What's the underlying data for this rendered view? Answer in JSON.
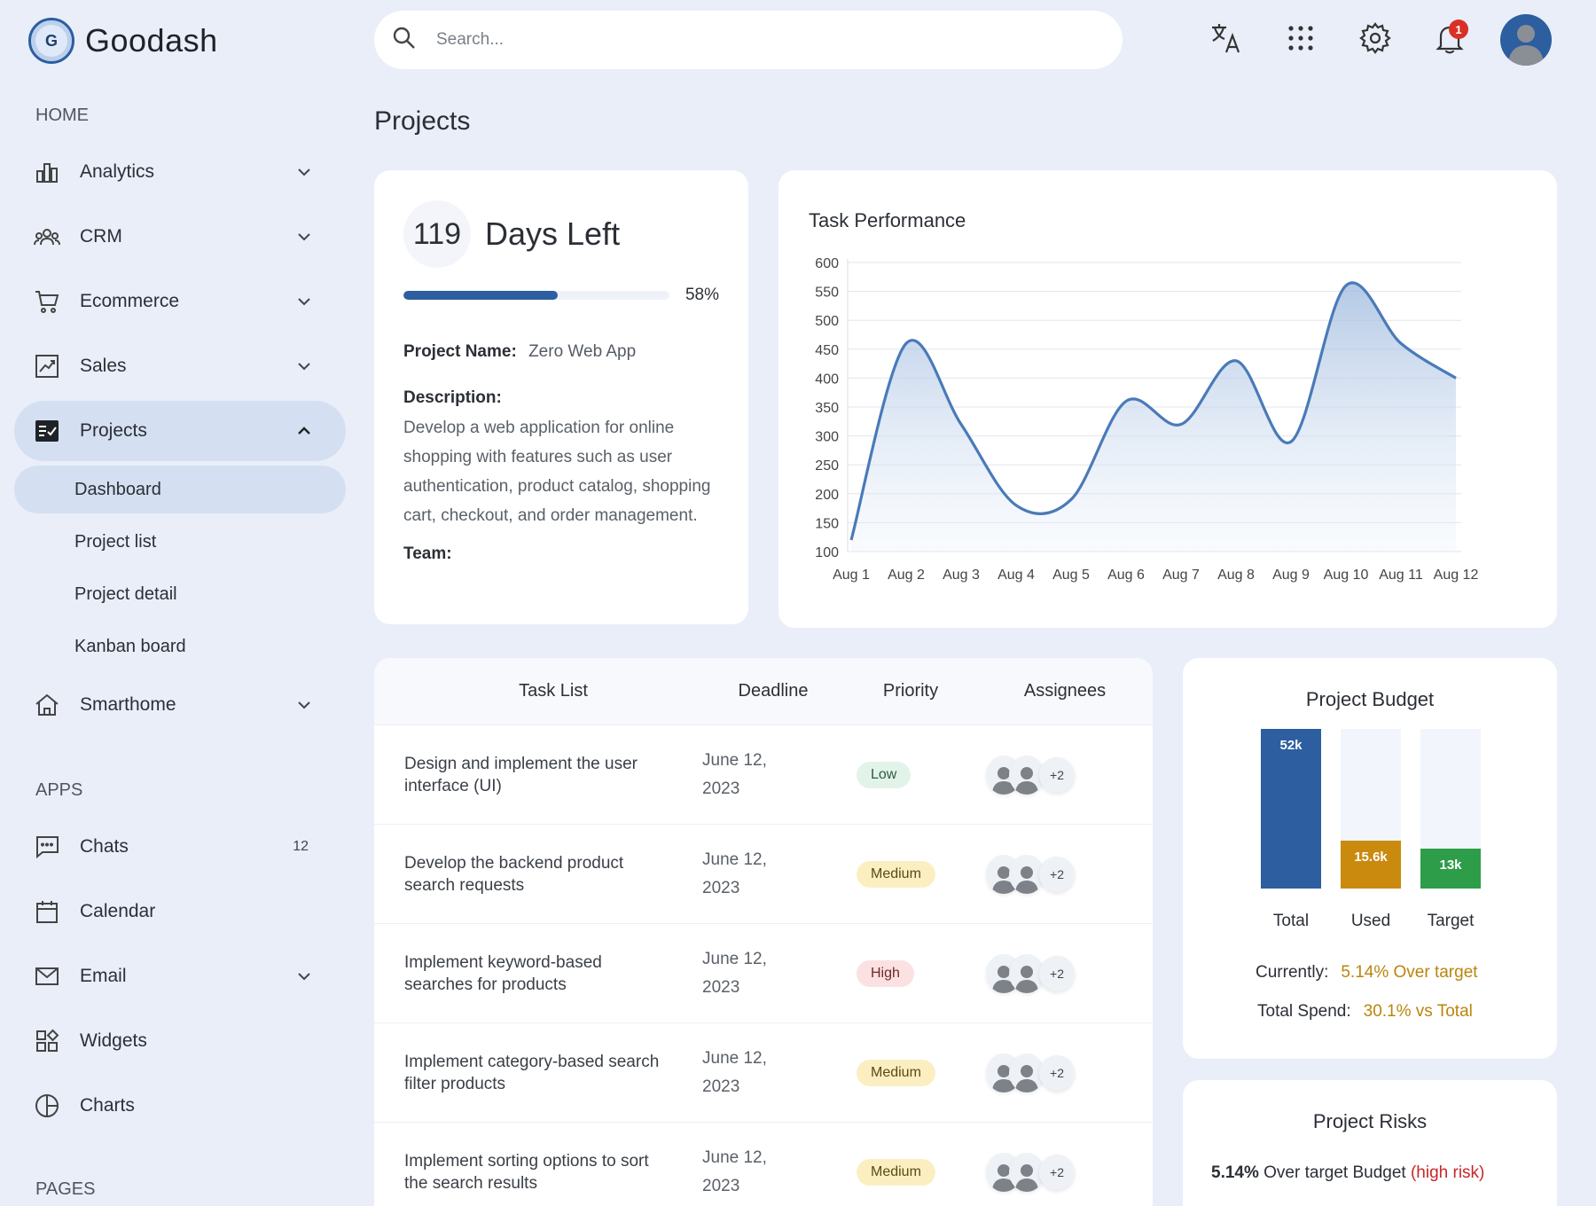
{
  "brand": {
    "logo_letter": "G",
    "name": "Goodash"
  },
  "search": {
    "placeholder": "Search..."
  },
  "header": {
    "notification_count": "1"
  },
  "page": {
    "title": "Projects"
  },
  "sidebar": {
    "sections": [
      {
        "label": "HOME",
        "items": [
          {
            "label": "Analytics",
            "icon": "bar-chart-icon"
          },
          {
            "label": "CRM",
            "icon": "people-icon"
          },
          {
            "label": "Ecommerce",
            "icon": "cart-icon"
          },
          {
            "label": "Sales",
            "icon": "trend-icon"
          },
          {
            "label": "Projects",
            "icon": "checklist-icon",
            "active": true,
            "expanded": true,
            "children": [
              "Dashboard",
              "Project list",
              "Project detail",
              "Kanban board"
            ]
          },
          {
            "label": "Smarthome",
            "icon": "home-icon"
          }
        ]
      },
      {
        "label": "APPS",
        "items": [
          {
            "label": "Chats",
            "icon": "chat-icon",
            "badge": "12"
          },
          {
            "label": "Calendar",
            "icon": "calendar-icon"
          },
          {
            "label": "Email",
            "icon": "mail-icon"
          },
          {
            "label": "Widgets",
            "icon": "widgets-icon"
          },
          {
            "label": "Charts",
            "icon": "pie-icon"
          }
        ]
      },
      {
        "label": "PAGES"
      }
    ]
  },
  "days_card": {
    "days": "119",
    "days_label": "Days Left",
    "progress": 58,
    "progress_label": "58%",
    "project_name_label": "Project Name:",
    "project_name": "Zero Web App",
    "description_label": "Description:",
    "description": "Develop a web application for online shopping with features such as user authentication, product catalog, shopping cart, checkout, and order management.",
    "team_label": "Team:"
  },
  "performance": {
    "title": "Task Performance",
    "chart_data": {
      "type": "area",
      "title": "Task Performance",
      "x": [
        "Aug 1",
        "Aug 2",
        "Aug 3",
        "Aug 4",
        "Aug 5",
        "Aug 6",
        "Aug 7",
        "Aug 8",
        "Aug 9",
        "Aug 10",
        "Aug 11",
        "Aug 12"
      ],
      "values": [
        120,
        460,
        320,
        180,
        190,
        360,
        320,
        430,
        290,
        560,
        460,
        400
      ],
      "ylim": [
        100,
        600
      ],
      "yticks": [
        600,
        550,
        500,
        450,
        400,
        350,
        300,
        250,
        200,
        150,
        100
      ],
      "grid": true,
      "color": "#4a7ab8"
    }
  },
  "tasks": {
    "headers": [
      "Task List",
      "Deadline",
      "Priority",
      "Assignees"
    ],
    "rows": [
      {
        "task": "Design and implement the user interface (UI)",
        "deadline_line1": "June 12,",
        "deadline_line2": "2023",
        "priority": "Low",
        "more": "+2"
      },
      {
        "task": "Develop the backend product search requests",
        "deadline_line1": "June 12,",
        "deadline_line2": "2023",
        "priority": "Medium",
        "more": "+2"
      },
      {
        "task": "Implement keyword-based searches for products",
        "deadline_line1": "June 12,",
        "deadline_line2": "2023",
        "priority": "High",
        "more": "+2"
      },
      {
        "task": "Implement category-based search filter products",
        "deadline_line1": "June 12,",
        "deadline_line2": "2023",
        "priority": "Medium",
        "more": "+2"
      },
      {
        "task": "Implement sorting options to sort the search results",
        "deadline_line1": "June 12,",
        "deadline_line2": "2023",
        "priority": "Medium",
        "more": "+2"
      }
    ]
  },
  "budget": {
    "title": "Project Budget",
    "chart_data": {
      "type": "bar",
      "categories": [
        "Total",
        "Used",
        "Target"
      ],
      "values": [
        52,
        15.6,
        13
      ],
      "value_labels": [
        "52k",
        "15.6k",
        "13k"
      ],
      "ylim": [
        0,
        52
      ],
      "colors": [
        "#2c5ea0",
        "#c98a0e",
        "#2e9d4a"
      ]
    },
    "currently_label": "Currently:",
    "currently_value": "5.14% Over target",
    "spend_label": "Total Spend:",
    "spend_value": "30.1% vs Total"
  },
  "risks": {
    "title": "Project Risks",
    "pct": "5.14%",
    "text": "Over target Budget",
    "level": "(high risk)"
  }
}
